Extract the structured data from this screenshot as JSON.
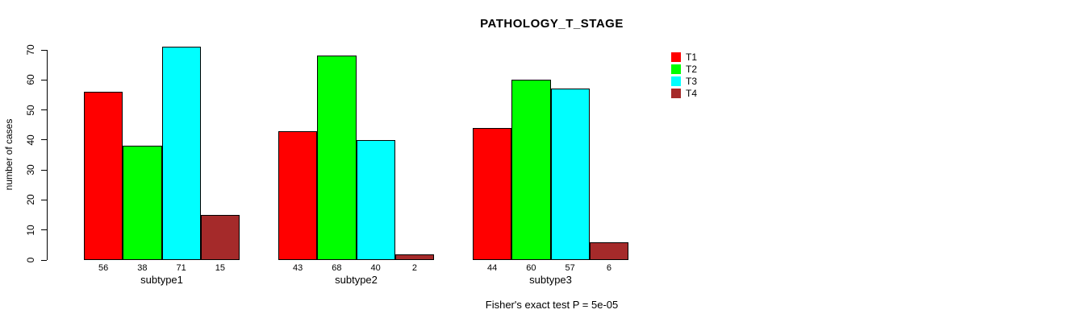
{
  "chart_data": {
    "type": "bar",
    "title": "PATHOLOGY_T_STAGE",
    "ylabel": "number of cases",
    "xlabel": "",
    "ylim": [
      0,
      70
    ],
    "yticks": [
      0,
      10,
      20,
      30,
      40,
      50,
      60,
      70
    ],
    "categories": [
      "subtype1",
      "subtype2",
      "subtype3"
    ],
    "series": [
      {
        "name": "T1",
        "color": "#ff0000",
        "values": [
          56,
          43,
          44
        ]
      },
      {
        "name": "T2",
        "color": "#00ff00",
        "values": [
          38,
          68,
          60
        ]
      },
      {
        "name": "T3",
        "color": "#00ffff",
        "values": [
          71,
          40,
          57
        ]
      },
      {
        "name": "T4",
        "color": "#a52a2a",
        "values": [
          15,
          2,
          6
        ]
      }
    ],
    "show_bar_values": true,
    "legend": {
      "position": "top-right",
      "entries": [
        "T1",
        "T2",
        "T3",
        "T4"
      ]
    },
    "annotation": "Fisher's exact test P = 5e-05",
    "grid": false,
    "background_color": "#ffffff",
    "axis_color": "#000000",
    "bar_border_color": "#000000",
    "text_color": "#000000"
  }
}
